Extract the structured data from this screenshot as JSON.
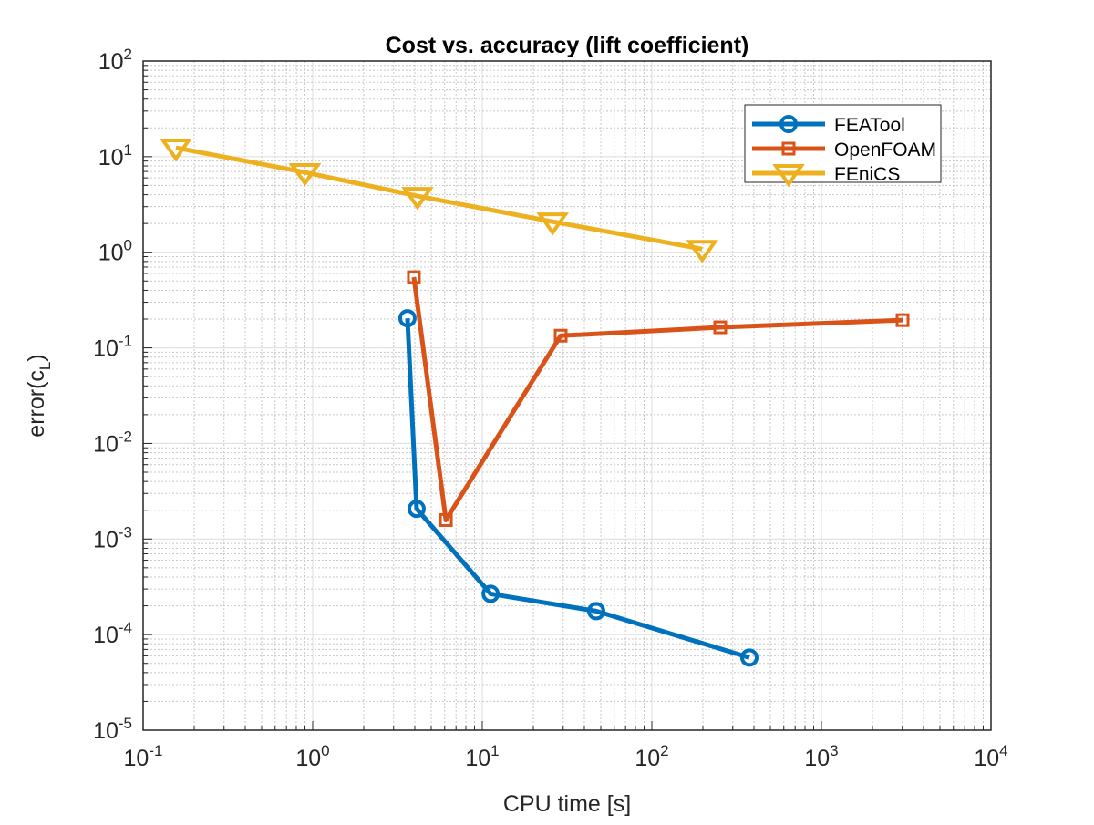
{
  "chart_data": {
    "type": "line",
    "title": "Cost vs. accuracy (lift coefficient)",
    "xlabel": "CPU time [s]",
    "ylabel_main": "error(c",
    "ylabel_sub": "L",
    "ylabel_close": ")",
    "xscale": "log",
    "yscale": "log",
    "xlim": [
      0.1,
      10000
    ],
    "ylim": [
      1e-05,
      100
    ],
    "x_tick_exponents": [
      -1,
      0,
      1,
      2,
      3,
      4
    ],
    "y_tick_exponents": [
      2,
      1,
      0,
      -1,
      -2,
      -3,
      -4,
      -5
    ],
    "tick_base": "10",
    "grid": true,
    "minor_grid": true,
    "legend_position": "top-right",
    "series": [
      {
        "name": "FEATool",
        "color": "#0072BD",
        "marker": "circle",
        "x": [
          3.62,
          4.1,
          11.2,
          47,
          376
        ],
        "y": [
          0.204,
          0.00207,
          0.000267,
          0.000176,
          5.75e-05
        ]
      },
      {
        "name": "OpenFOAM",
        "color": "#D95319",
        "marker": "square",
        "x": [
          3.95,
          6.1,
          29,
          253,
          3010
        ],
        "y": [
          0.548,
          0.00158,
          0.134,
          0.164,
          0.195
        ]
      },
      {
        "name": "FEniCS",
        "color": "#EDB120",
        "marker": "triangle-down",
        "x": [
          0.156,
          0.9,
          4.15,
          26,
          198
        ],
        "y": [
          12.4,
          6.86,
          3.87,
          2.09,
          1.08
        ]
      }
    ]
  }
}
